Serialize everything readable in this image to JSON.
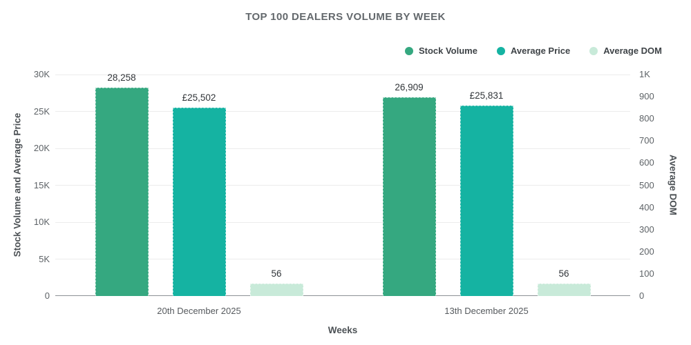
{
  "chart_data": {
    "type": "bar",
    "title": "TOP 100 DEALERS VOLUME BY WEEK",
    "categories": [
      "20th December 2025",
      "13th December 2025"
    ],
    "series": [
      {
        "name": "Stock Volume",
        "axis": "left",
        "color": "#35a880",
        "values": [
          28258,
          26909
        ],
        "value_labels": [
          "28,258",
          "26,909"
        ]
      },
      {
        "name": "Average Price",
        "axis": "left",
        "color": "#15b3a2",
        "values": [
          25502,
          25831
        ],
        "value_labels": [
          "£25,502",
          "£25,831"
        ]
      },
      {
        "name": "Average DOM",
        "axis": "right",
        "color": "#c8ead9",
        "values": [
          56,
          56
        ],
        "value_labels": [
          "56",
          "56"
        ]
      }
    ],
    "left_axis": {
      "label": "Stock Volume and Average Price",
      "min": 0,
      "max": 30000,
      "ticks": [
        "0",
        "5K",
        "10K",
        "15K",
        "20K",
        "25K",
        "30K"
      ]
    },
    "right_axis": {
      "label": "Average DOM",
      "min": 0,
      "max": 1000,
      "ticks": [
        "0",
        "100",
        "200",
        "300",
        "400",
        "500",
        "600",
        "700",
        "800",
        "900",
        "1K"
      ]
    },
    "xlabel": "Weeks",
    "legend_position": "top-right",
    "grid": "horizontal",
    "colors": {
      "gridline": "#ececec",
      "baseline": "#8b9094",
      "title_text": "#63686c",
      "axis_text": "#5d6266"
    }
  }
}
